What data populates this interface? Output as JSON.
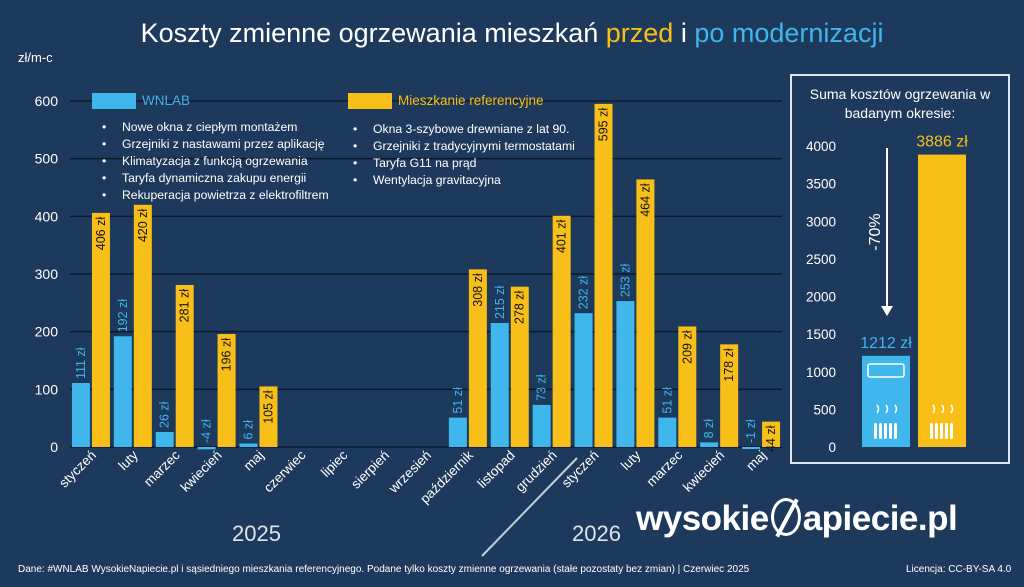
{
  "title": {
    "part1": "Koszty zmienne ogrzewania mieszkań ",
    "part2": "przed",
    "part3": " i ",
    "part4": "po modernizacji"
  },
  "legend": {
    "a": "WNLAB",
    "b": "Mieszkanie referencyjne"
  },
  "bullets_a": [
    "Nowe okna z ciepłym montażem",
    "Grzejniki z nastawami przez aplikację",
    "Klimatyzacja z funkcją ogrzewania",
    "Taryfa dynamiczna zakupu energii",
    "Rekuperacja powietrza z elektrofiltrem"
  ],
  "bullets_b": [
    "Okna 3-szybowe drewniane z lat 90.",
    "Grzejniki z tradycyjnymi termostatami",
    "Taryfa G11 na prąd",
    "Wentylacja gravitacyjna"
  ],
  "years": [
    "2025",
    "2026"
  ],
  "side": {
    "title": "Suma kosztów ogrzewania w badanym okresie:",
    "delta": "-70%"
  },
  "logo": {
    "left": "wysokie",
    "right": "apiecie.pl"
  },
  "footer": "Dane: #WNLAB WysokieNapiecie.pl i sąsiedniego mieszkania referencyjnego. Podane tylko koszty zmienne ogrzewania (stałe pozostaty bez zmian)  |  Czerwiec 2025",
  "license": "Licencja: CC-BY-SA 4.0",
  "colors": {
    "wnlab": "#3fb6ec",
    "ref": "#f8bf19",
    "background": "#1d3a5c",
    "grid": "#0b1a2b"
  },
  "chart_data": [
    {
      "type": "bar",
      "ylabel": "zł/m-c",
      "ylim": [
        0,
        600
      ],
      "yticks": [
        0,
        100,
        200,
        300,
        400,
        500,
        600
      ],
      "categories": [
        "styczeń",
        "luty",
        "marzec",
        "kwiecień",
        "maj",
        "czerwiec",
        "lipiec",
        "sierpień",
        "wrzesień",
        "październik",
        "listopad",
        "grudzień",
        "styczeń",
        "luty",
        "marzec",
        "kwiecień",
        "maj"
      ],
      "series": [
        {
          "name": "WNLAB",
          "values": [
            111,
            192,
            26,
            -4,
            6,
            null,
            null,
            null,
            null,
            51,
            215,
            73,
            232,
            253,
            51,
            8,
            -1
          ],
          "labels": [
            "111 zł",
            "192 zł",
            "26 zł",
            "-4 zł",
            "6 zł",
            "",
            "",
            "",
            "",
            "51 zł",
            "215 zł",
            "73 zł",
            "232 zł",
            "253 zł",
            "51 zł",
            "8 zł",
            "-1 zł"
          ]
        },
        {
          "name": "Mieszkanie referencyjne",
          "values": [
            406,
            420,
            281,
            196,
            105,
            null,
            null,
            null,
            null,
            308,
            278,
            401,
            595,
            464,
            209,
            178,
            44
          ],
          "labels": [
            "406 zł",
            "420 zł",
            "281 zł",
            "196 zł",
            "105 zł",
            "",
            "",
            "",
            "",
            "308 zł",
            "278 zł",
            "401 zł",
            "595 zł",
            "464 zł",
            "209 zł",
            "178 zł",
            "44 zł"
          ]
        }
      ],
      "grid": true
    },
    {
      "type": "bar",
      "ylim": [
        0,
        4000
      ],
      "yticks": [
        0,
        500,
        1000,
        1500,
        2000,
        2500,
        3000,
        3500,
        4000
      ],
      "categories": [
        "WNLAB",
        "Mieszkanie referencyjne"
      ],
      "values": [
        1212,
        3886
      ],
      "labels": [
        "1212 zł",
        "3886 zł"
      ]
    }
  ]
}
